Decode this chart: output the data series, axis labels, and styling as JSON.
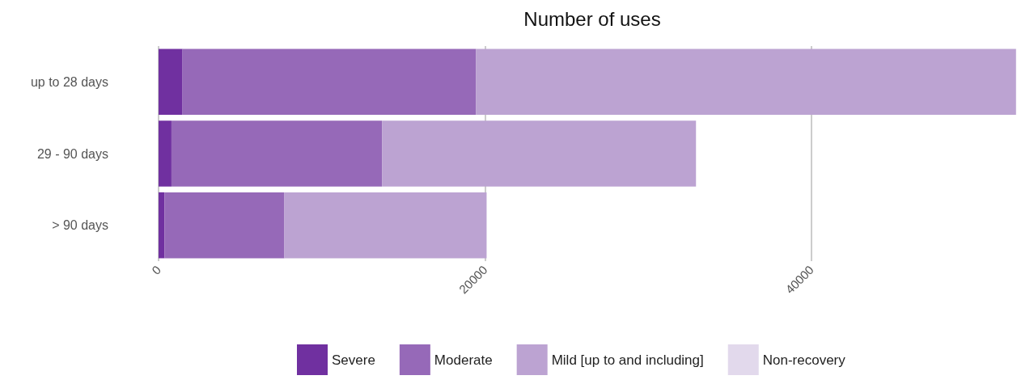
{
  "chart_data": {
    "type": "bar",
    "title": "Number of uses",
    "orientation": "horizontal",
    "stacked": true,
    "categories": [
      "up to 28 days",
      "29 - 90 days",
      "> 90 days"
    ],
    "series": [
      {
        "name": "Severe",
        "color": "#7030a0",
        "values": [
          1470,
          790,
          360
        ]
      },
      {
        "name": "Moderate",
        "color": "#9669b8",
        "values": [
          17970,
          12900,
          7350
        ]
      },
      {
        "name": "Mild [up to and including]",
        "color": "#bca3d2",
        "values": [
          33100,
          19240,
          12390
        ]
      },
      {
        "name": "Non-recovery",
        "color": "#e2d9ec",
        "values": [
          0,
          0,
          0
        ]
      }
    ],
    "xlim": [
      0,
      52600
    ],
    "xticks": [
      0,
      20000,
      40000
    ],
    "grid": "x",
    "legend": "bottom"
  }
}
